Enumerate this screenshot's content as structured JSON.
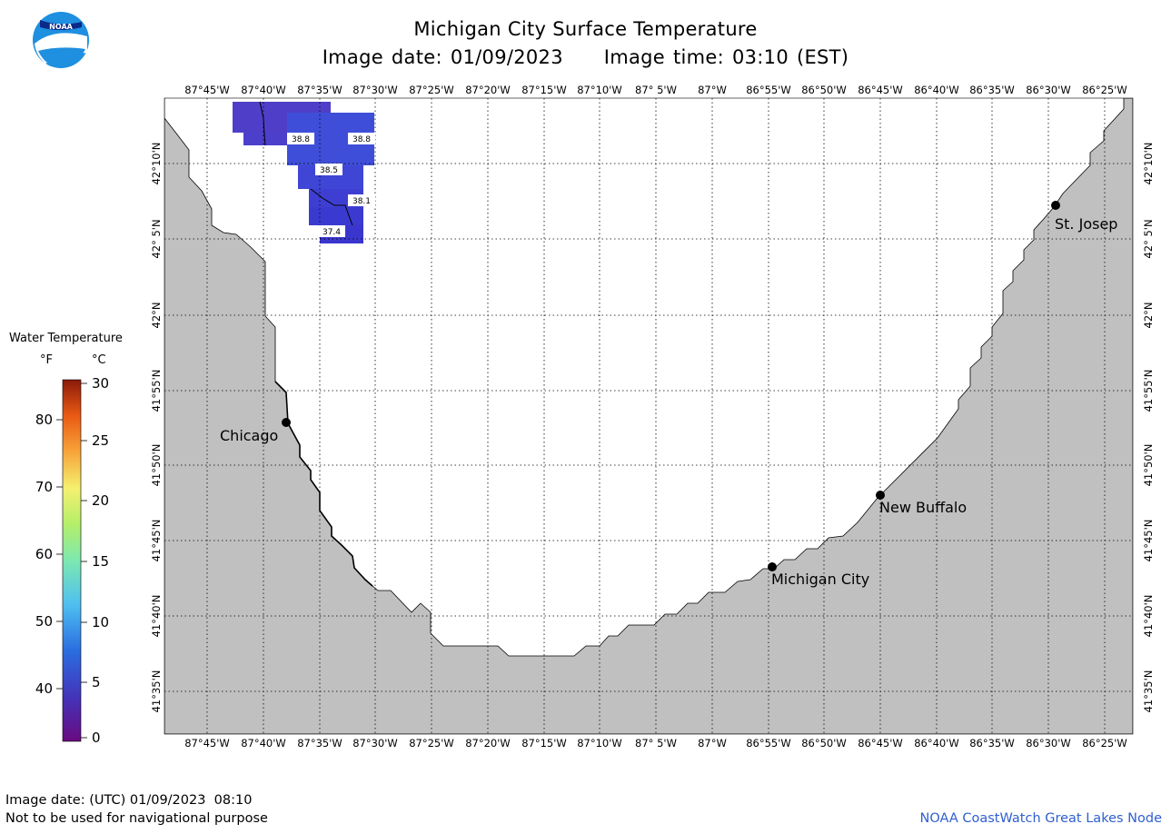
{
  "header": {
    "title": "Michigan City Surface Temperature",
    "subtitle": "Image date: 01/09/2023     Image time: 03:10 (EST)"
  },
  "map": {
    "longitude_labels": [
      "87°45'W",
      "87°40'W",
      "87°35'W",
      "87°30'W",
      "87°25'W",
      "87°20'W",
      "87°15'W",
      "87°10'W",
      "87° 5'W",
      "87°W",
      "86°55'W",
      "86°50'W",
      "86°45'W",
      "86°40'W",
      "86°35'W",
      "86°30'W",
      "86°25'W"
    ],
    "latitude_labels": [
      "42°10'N",
      "42° 5'N",
      "42°N",
      "41°55'N",
      "41°50'N",
      "41°45'N",
      "41°40'N",
      "41°35'N"
    ],
    "cities": [
      {
        "name": "Chicago"
      },
      {
        "name": "Michigan City"
      },
      {
        "name": "New Buffalo"
      },
      {
        "name": "St. Josep"
      }
    ],
    "temperature_labels": [
      "38.8",
      "38.8",
      "38.5",
      "38.1",
      "37.4"
    ],
    "land_color": "#c0c0c0",
    "water_color": "#ffffff",
    "data_color": "#4a3fcf"
  },
  "legend": {
    "title": "Water Temperature",
    "unit_f": "°F",
    "unit_c": "°C",
    "fahrenheit_ticks": [
      "80",
      "70",
      "60",
      "50",
      "40"
    ],
    "celsius_ticks": [
      "30",
      "25",
      "20",
      "15",
      "10",
      "5",
      "0"
    ]
  },
  "footer": {
    "utc_date": "Image date: (UTC) 01/09/2023  08:10",
    "disclaimer": "Not to be used for navigational purpose",
    "credit": "NOAA CoastWatch Great Lakes Node"
  },
  "logo": {
    "text": "NOAA"
  }
}
